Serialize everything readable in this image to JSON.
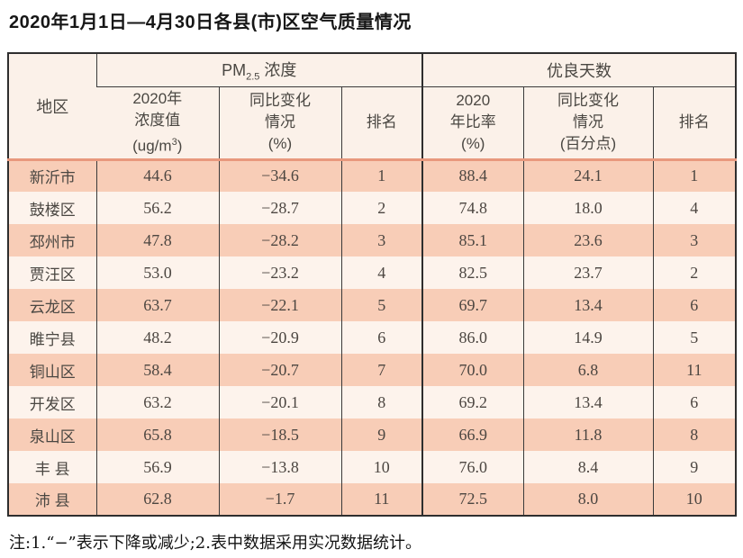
{
  "title": "2020年1月1日—4月30日各县(市)区空气质量情况",
  "table": {
    "region_header": "地区",
    "group_headers": {
      "pm_prefix": "PM",
      "pm_subscript": "2.5",
      "pm_suffix": " 浓度",
      "good_days": "优良天数"
    },
    "sub_headers": {
      "pm_value": {
        "line1": "2020年",
        "line2": "浓度值",
        "unit_pre": "(ug/m",
        "unit_sup": "3",
        "unit_post": ")"
      },
      "pm_change": {
        "line1": "同比变化",
        "line2": "情况",
        "line3": "(%)"
      },
      "pm_rank": "排名",
      "good_ratio": {
        "line1": "2020",
        "line2": "年比率",
        "line3": "(%)"
      },
      "good_change": {
        "line1": "同比变化",
        "line2": "情况",
        "line3": "(百分点)"
      },
      "good_rank": "排名"
    },
    "rows": [
      {
        "region": "新沂市",
        "pm_value": "44.6",
        "pm_change": "−34.6",
        "pm_rank": "1",
        "good_ratio": "88.4",
        "good_change": "24.1",
        "good_rank": "1"
      },
      {
        "region": "鼓楼区",
        "pm_value": "56.2",
        "pm_change": "−28.7",
        "pm_rank": "2",
        "good_ratio": "74.8",
        "good_change": "18.0",
        "good_rank": "4"
      },
      {
        "region": "邳州市",
        "pm_value": "47.8",
        "pm_change": "−28.2",
        "pm_rank": "3",
        "good_ratio": "85.1",
        "good_change": "23.6",
        "good_rank": "3"
      },
      {
        "region": "贾汪区",
        "pm_value": "53.0",
        "pm_change": "−23.2",
        "pm_rank": "4",
        "good_ratio": "82.5",
        "good_change": "23.7",
        "good_rank": "2"
      },
      {
        "region": "云龙区",
        "pm_value": "63.7",
        "pm_change": "−22.1",
        "pm_rank": "5",
        "good_ratio": "69.7",
        "good_change": "13.4",
        "good_rank": "6"
      },
      {
        "region": "睢宁县",
        "pm_value": "48.2",
        "pm_change": "−20.9",
        "pm_rank": "6",
        "good_ratio": "86.0",
        "good_change": "14.9",
        "good_rank": "5"
      },
      {
        "region": "铜山区",
        "pm_value": "58.4",
        "pm_change": "−20.7",
        "pm_rank": "7",
        "good_ratio": "70.0",
        "good_change": "6.8",
        "good_rank": "11"
      },
      {
        "region": "开发区",
        "pm_value": "63.2",
        "pm_change": "−20.1",
        "pm_rank": "8",
        "good_ratio": "69.2",
        "good_change": "13.4",
        "good_rank": "6"
      },
      {
        "region": "泉山区",
        "pm_value": "65.8",
        "pm_change": "−18.5",
        "pm_rank": "9",
        "good_ratio": "66.9",
        "good_change": "11.8",
        "good_rank": "8"
      },
      {
        "region": "丰 县",
        "pm_value": "56.9",
        "pm_change": "−13.8",
        "pm_rank": "10",
        "good_ratio": "76.0",
        "good_change": "8.4",
        "good_rank": "9"
      },
      {
        "region": "沛 县",
        "pm_value": "62.8",
        "pm_change": "−1.7",
        "pm_rank": "11",
        "good_ratio": "72.5",
        "good_change": "8.0",
        "good_rank": "10"
      }
    ]
  },
  "footnote": "注:1.“−”表示下降或减少;2.表中数据采用实况数据统计。",
  "colors": {
    "row_shaded": "#f8cdb7",
    "row_light": "#fdf3ec",
    "header_bg": "#fbf1e9",
    "header_separator": "#e8987d",
    "table_border": "#2e2e2e",
    "text": "#474542"
  }
}
